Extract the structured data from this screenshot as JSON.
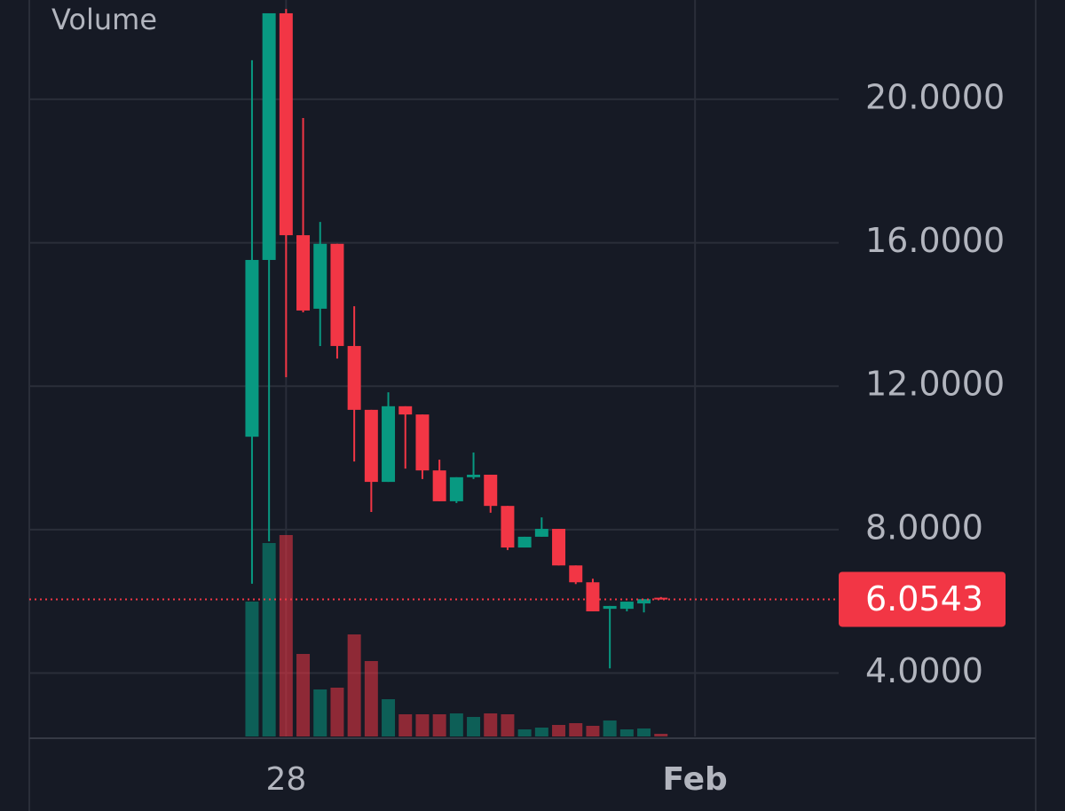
{
  "chart_data": {
    "type": "candlestick",
    "volume_title": "Volume",
    "x": [
      0,
      1,
      2,
      3,
      4,
      5,
      6,
      7,
      8,
      9,
      10,
      11,
      12,
      13,
      14,
      15,
      16,
      17,
      18,
      19,
      20,
      21,
      22,
      23,
      24
    ],
    "xlim": [
      -13.07,
      34.43
    ],
    "xticks": [
      {
        "value": 2,
        "label": "28"
      },
      {
        "value": 26,
        "label": "Feb"
      }
    ],
    "ylim": [
      2.23,
      22.77
    ],
    "yticks": [
      {
        "value": 4,
        "label": "4.0000"
      },
      {
        "value": 8,
        "label": "8.0000"
      },
      {
        "value": 12,
        "label": "12.0000"
      },
      {
        "value": 16,
        "label": "16.0000"
      },
      {
        "value": 20,
        "label": "20.0000"
      }
    ],
    "volume_ylim": [
      0,
      830
    ],
    "up_color": "#089981",
    "down_color": "#f23645",
    "grid": true,
    "series": [
      {
        "open": [
          10.59,
          15.52,
          22.4,
          16.21,
          14.16,
          15.97,
          13.12,
          11.34,
          9.33,
          11.44,
          11.21,
          9.65,
          8.79,
          9.46,
          9.53,
          8.66,
          7.5,
          7.8,
          8.02,
          7.0,
          6.53,
          5.79,
          5.79,
          5.94,
          6.1
        ],
        "high": [
          21.09,
          22.4,
          22.52,
          19.48,
          16.58,
          15.97,
          14.23,
          11.34,
          11.83,
          11.44,
          11.21,
          9.95,
          9.46,
          10.15,
          9.53,
          8.66,
          7.8,
          8.34,
          8.02,
          7.0,
          6.63,
          5.87,
          5.99,
          6.06,
          6.12
        ],
        "low": [
          6.49,
          7.67,
          12.25,
          14.06,
          13.12,
          12.77,
          9.9,
          8.49,
          9.33,
          9.7,
          9.41,
          8.79,
          8.74,
          9.41,
          8.47,
          7.43,
          7.5,
          7.8,
          7.0,
          6.48,
          5.72,
          4.13,
          5.72,
          5.69,
          6.05
        ],
        "close": [
          15.52,
          22.4,
          16.21,
          14.11,
          15.97,
          13.12,
          11.34,
          9.33,
          11.44,
          11.21,
          9.65,
          8.79,
          9.46,
          9.53,
          8.66,
          7.5,
          7.8,
          8.02,
          7.0,
          6.53,
          5.72,
          5.87,
          5.99,
          6.06,
          6.0543
        ],
        "volume": [
          152,
          218,
          227,
          93,
          53,
          55,
          115,
          85,
          42,
          25,
          25,
          25,
          26,
          22,
          26,
          25,
          8,
          10,
          13,
          15,
          12,
          18,
          8,
          9,
          3
        ]
      }
    ]
  }
}
